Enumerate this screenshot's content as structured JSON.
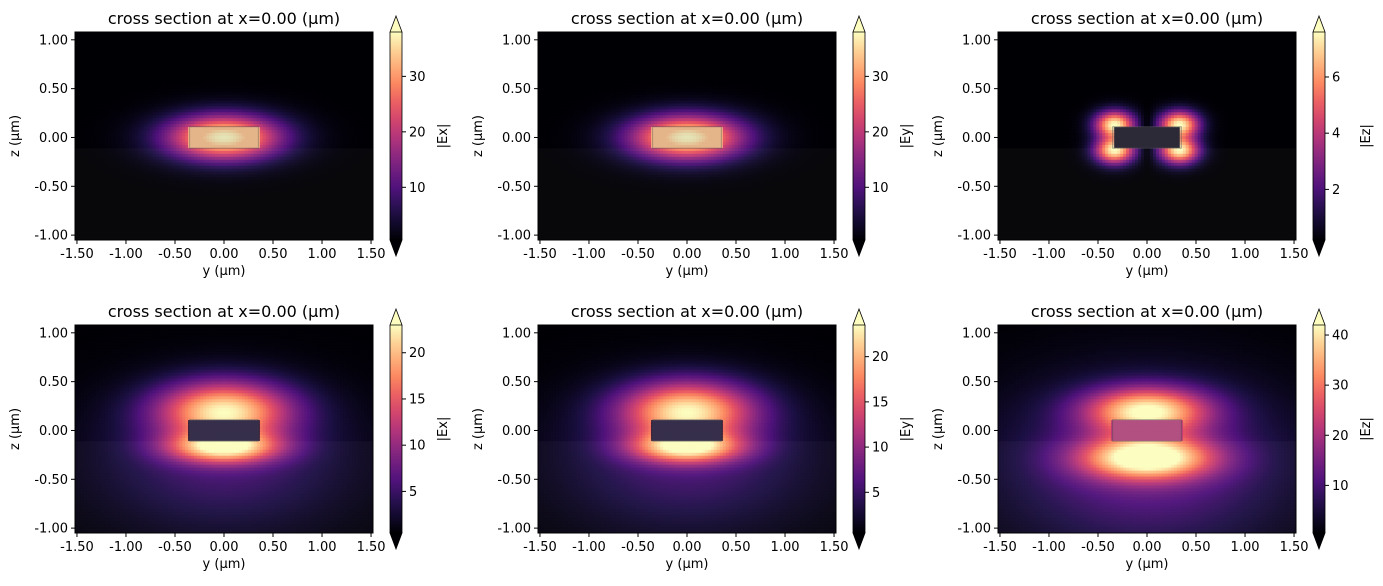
{
  "chart_data": [
    {
      "type": "heatmap",
      "title": "cross section at x=0.00 (µm)",
      "xlabel": "y (µm)",
      "ylabel": "z (µm)",
      "colorbar_label": "|Ex|",
      "colormap": "magma",
      "colorbar_ticks": [
        10,
        20,
        30
      ],
      "colorbar_range": [
        0.5,
        38
      ],
      "colorbar_extend": "both",
      "xticks": [
        "-1.50",
        "-1.00",
        "-0.50",
        "0.00",
        "0.50",
        "1.00",
        "1.50"
      ],
      "yticks": [
        "1.00",
        "0.50",
        "0.00",
        "-0.50",
        "-1.00"
      ],
      "xlim": [
        -1.52,
        1.52
      ],
      "ylim": [
        -1.05,
        1.08
      ],
      "core": {
        "y_min": -0.35,
        "y_max": 0.35,
        "z_min": -0.11,
        "z_max": 0.11
      },
      "substrate_top_z": -0.11,
      "field_pattern": "fundamental TE: strongest inside core",
      "peak_value": 38
    },
    {
      "type": "heatmap",
      "title": "cross section at x=0.00 (µm)",
      "xlabel": "y (µm)",
      "ylabel": "z (µm)",
      "colorbar_label": "|Ey|",
      "colormap": "magma",
      "colorbar_ticks": [
        10,
        20,
        30
      ],
      "colorbar_range": [
        0.5,
        38
      ],
      "colorbar_extend": "both",
      "xticks": [
        "-1.50",
        "-1.00",
        "-0.50",
        "0.00",
        "0.50",
        "1.00",
        "1.50"
      ],
      "yticks": [
        "1.00",
        "0.50",
        "0.00",
        "-0.50",
        "-1.00"
      ],
      "xlim": [
        -1.52,
        1.52
      ],
      "ylim": [
        -1.05,
        1.08
      ],
      "core": {
        "y_min": -0.35,
        "y_max": 0.35,
        "z_min": -0.11,
        "z_max": 0.11
      },
      "substrate_top_z": -0.11,
      "field_pattern": "fundamental TE: strongest inside core",
      "peak_value": 38
    },
    {
      "type": "heatmap",
      "title": "cross section at x=0.00 (µm)",
      "xlabel": "y (µm)",
      "ylabel": "z (µm)",
      "colorbar_label": "|Ez|",
      "colormap": "magma",
      "colorbar_ticks": [
        2,
        4,
        6
      ],
      "colorbar_range": [
        0.2,
        7.6
      ],
      "colorbar_extend": "both",
      "xticks": [
        "-1.50",
        "-1.00",
        "-0.50",
        "0.00",
        "0.50",
        "1.00",
        "1.50"
      ],
      "yticks": [
        "1.00",
        "0.50",
        "0.00",
        "-0.50",
        "-1.00"
      ],
      "xlim": [
        -1.52,
        1.52
      ],
      "ylim": [
        -1.05,
        1.08
      ],
      "core": {
        "y_min": -0.35,
        "y_max": 0.35,
        "z_min": -0.11,
        "z_max": 0.11
      },
      "substrate_top_z": -0.11,
      "field_pattern": "four lobes at core corners",
      "peak_value": 7.6
    },
    {
      "type": "heatmap",
      "title": "cross section at x=0.00 (µm)",
      "xlabel": "y (µm)",
      "ylabel": "z (µm)",
      "colorbar_label": "|Ex|",
      "colormap": "magma",
      "colorbar_ticks": [
        5,
        10,
        15,
        20
      ],
      "colorbar_range": [
        0.5,
        23
      ],
      "colorbar_extend": "both",
      "xticks": [
        "-1.50",
        "-1.00",
        "-0.50",
        "0.00",
        "0.50",
        "1.00",
        "1.50"
      ],
      "yticks": [
        "1.00",
        "0.50",
        "0.00",
        "-0.50",
        "-1.00"
      ],
      "xlim": [
        -1.52,
        1.52
      ],
      "ylim": [
        -1.05,
        1.08
      ],
      "core": {
        "y_min": -0.35,
        "y_max": 0.35,
        "z_min": -0.11,
        "z_max": 0.11
      },
      "substrate_top_z": -0.11,
      "field_pattern": "bands above and below core",
      "peak_value": 23
    },
    {
      "type": "heatmap",
      "title": "cross section at x=0.00 (µm)",
      "xlabel": "y (µm)",
      "ylabel": "z (µm)",
      "colorbar_label": "|Ey|",
      "colormap": "magma",
      "colorbar_ticks": [
        5,
        10,
        15,
        20
      ],
      "colorbar_range": [
        0.5,
        23.5
      ],
      "colorbar_extend": "both",
      "xticks": [
        "-1.50",
        "-1.00",
        "-0.50",
        "0.00",
        "0.50",
        "1.00",
        "1.50"
      ],
      "yticks": [
        "1.00",
        "0.50",
        "0.00",
        "-0.50",
        "-1.00"
      ],
      "xlim": [
        -1.52,
        1.52
      ],
      "ylim": [
        -1.05,
        1.08
      ],
      "core": {
        "y_min": -0.35,
        "y_max": 0.35,
        "z_min": -0.11,
        "z_max": 0.11
      },
      "substrate_top_z": -0.11,
      "field_pattern": "bands above and below core",
      "peak_value": 23.5
    },
    {
      "type": "heatmap",
      "title": "cross section at x=0.00 (µm)",
      "xlabel": "y (µm)",
      "ylabel": "z (µm)",
      "colorbar_label": "|Ez|",
      "colormap": "magma",
      "colorbar_ticks": [
        10,
        20,
        30,
        40
      ],
      "colorbar_range": [
        0.5,
        42
      ],
      "colorbar_extend": "both",
      "xticks": [
        "-1.50",
        "-1.00",
        "-0.50",
        "0.00",
        "0.50",
        "1.00",
        "1.50"
      ],
      "yticks": [
        "1.00",
        "0.50",
        "0.00",
        "-0.50",
        "-1.00"
      ],
      "xlim": [
        -1.52,
        1.52
      ],
      "ylim": [
        -1.05,
        1.08
      ],
      "core": {
        "y_min": -0.35,
        "y_max": 0.35,
        "z_min": -0.11,
        "z_max": 0.11
      },
      "substrate_top_z": -0.11,
      "field_pattern": "fundamental TM: strong below and above core",
      "peak_value": 42
    }
  ]
}
